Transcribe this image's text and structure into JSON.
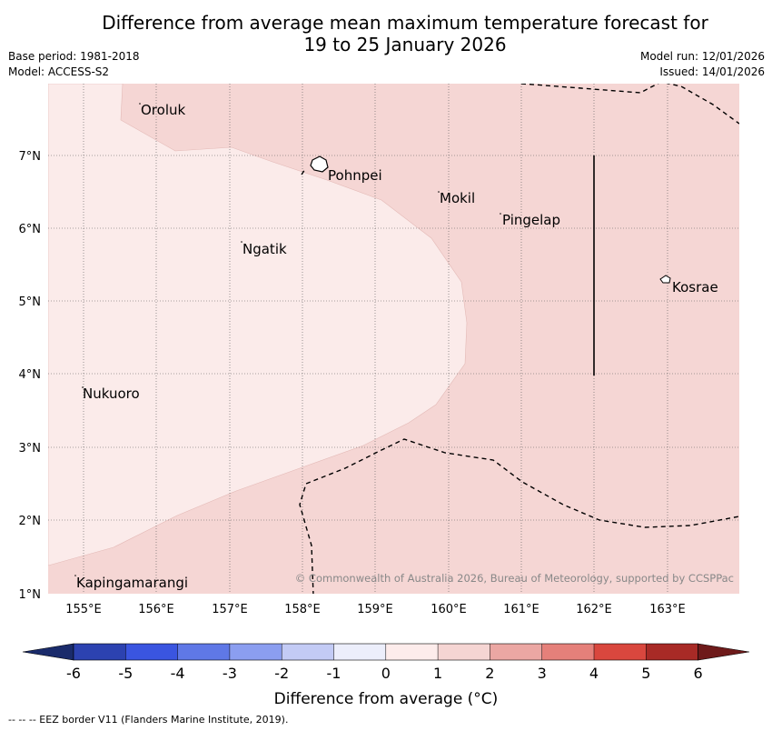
{
  "title_line1": "Difference from average mean maximum temperature forecast for",
  "title_line2": "19 to 25 January 2026",
  "base_period": "Base period: 1981-2018",
  "model": "Model: ACCESS-S2",
  "model_run": "Model run: 12/01/2026",
  "issued": "Issued: 14/01/2026",
  "places": {
    "oroluk": "Oroluk",
    "pohnpei": "Pohnpei",
    "mokil": "Mokil",
    "pingelap": "Pingelap",
    "ngatik": "Ngatik",
    "kosrae": "Kosrae",
    "nukuoro": "Nukuoro",
    "kapingamarangi": "Kapingamarangi"
  },
  "lat_labels": [
    "7°N",
    "6°N",
    "5°N",
    "4°N",
    "3°N",
    "2°N",
    "1°N"
  ],
  "lon_labels": [
    "155°E",
    "156°E",
    "157°E",
    "158°E",
    "159°E",
    "160°E",
    "161°E",
    "162°E",
    "163°E"
  ],
  "copyright": "© Commonwealth of Australia 2026, Bureau of Meteorology, supported by CCSPPac",
  "colorbar": {
    "ticks": [
      "-6",
      "-5",
      "-4",
      "-3",
      "-2",
      "-1",
      "0",
      "1",
      "2",
      "3",
      "4",
      "5",
      "6"
    ],
    "colors": [
      "#1a2b6b",
      "#2c42b0",
      "#3a55e0",
      "#5f78e6",
      "#8b9ef0",
      "#c3cbf5",
      "#eceefb",
      "#fdeceb",
      "#f5d5d3",
      "#eba7a3",
      "#e5807a",
      "#d9473e",
      "#a82a26",
      "#6e1a1a"
    ],
    "label": "Difference from average (°C)"
  },
  "footer": "--  --  -- EEZ border V11 (Flanders Marine Institute, 2019).",
  "colors": {
    "anomaly_0_1": "#fbebea",
    "anomaly_1_2": "#f5d6d4",
    "grid": "#555555"
  }
}
